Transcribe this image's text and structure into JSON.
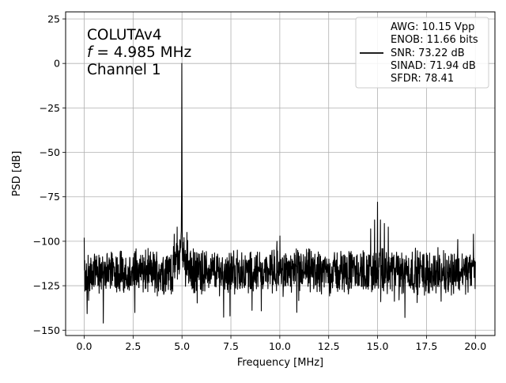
{
  "chart_data": {
    "type": "line",
    "title": "",
    "xlabel": "Frequency [MHz]",
    "ylabel": "PSD [dB]",
    "xlim": [
      -0.95,
      21.0
    ],
    "ylim": [
      -153,
      29
    ],
    "x_ticks": [
      0.0,
      2.5,
      5.0,
      7.5,
      10.0,
      12.5,
      15.0,
      17.5,
      20.0
    ],
    "x_tick_labels": [
      "0.0",
      "2.5",
      "5.0",
      "7.5",
      "10.0",
      "12.5",
      "15.0",
      "17.5",
      "20.0"
    ],
    "y_ticks": [
      25,
      0,
      -25,
      -50,
      -75,
      -100,
      -125,
      -150
    ],
    "y_tick_labels": [
      "25",
      "0",
      "−25",
      "−50",
      "−75",
      "−100",
      "−125",
      "−150"
    ],
    "grid": true,
    "annotation": {
      "line1": "COLUTAv4",
      "line2_var": "f",
      "line2_rest": " = 4.985 MHz",
      "line3": "Channel 1"
    },
    "legend": {
      "placement": "top-right",
      "entries": [
        "AWG: 10.15 Vpp",
        "ENOB: 11.66 bits",
        "SNR: 73.22 dB",
        "SINAD: 71.94 dB",
        "SFDR: 78.41"
      ]
    },
    "series": [
      {
        "color": "#000000",
        "noise_floor_db": -117,
        "start_x": 0.0,
        "end_x": 20.0,
        "fundamental": {
          "x": 4.985,
          "y": 0
        },
        "spurs": [
          {
            "x": 0.0,
            "y": -98
          },
          {
            "x": 0.98,
            "y": -146
          },
          {
            "x": 7.45,
            "y": -142
          },
          {
            "x": 4.6,
            "y": -96
          },
          {
            "x": 4.75,
            "y": -92
          },
          {
            "x": 5.25,
            "y": -95
          },
          {
            "x": 14.65,
            "y": -93
          },
          {
            "x": 14.85,
            "y": -88
          },
          {
            "x": 15.0,
            "y": -78
          },
          {
            "x": 15.15,
            "y": -88
          },
          {
            "x": 15.35,
            "y": -90
          },
          {
            "x": 15.55,
            "y": -92
          },
          {
            "x": 10.0,
            "y": -97
          },
          {
            "x": 9.85,
            "y": -100
          },
          {
            "x": 19.9,
            "y": -96
          },
          {
            "x": 19.1,
            "y": -99
          }
        ]
      }
    ]
  }
}
